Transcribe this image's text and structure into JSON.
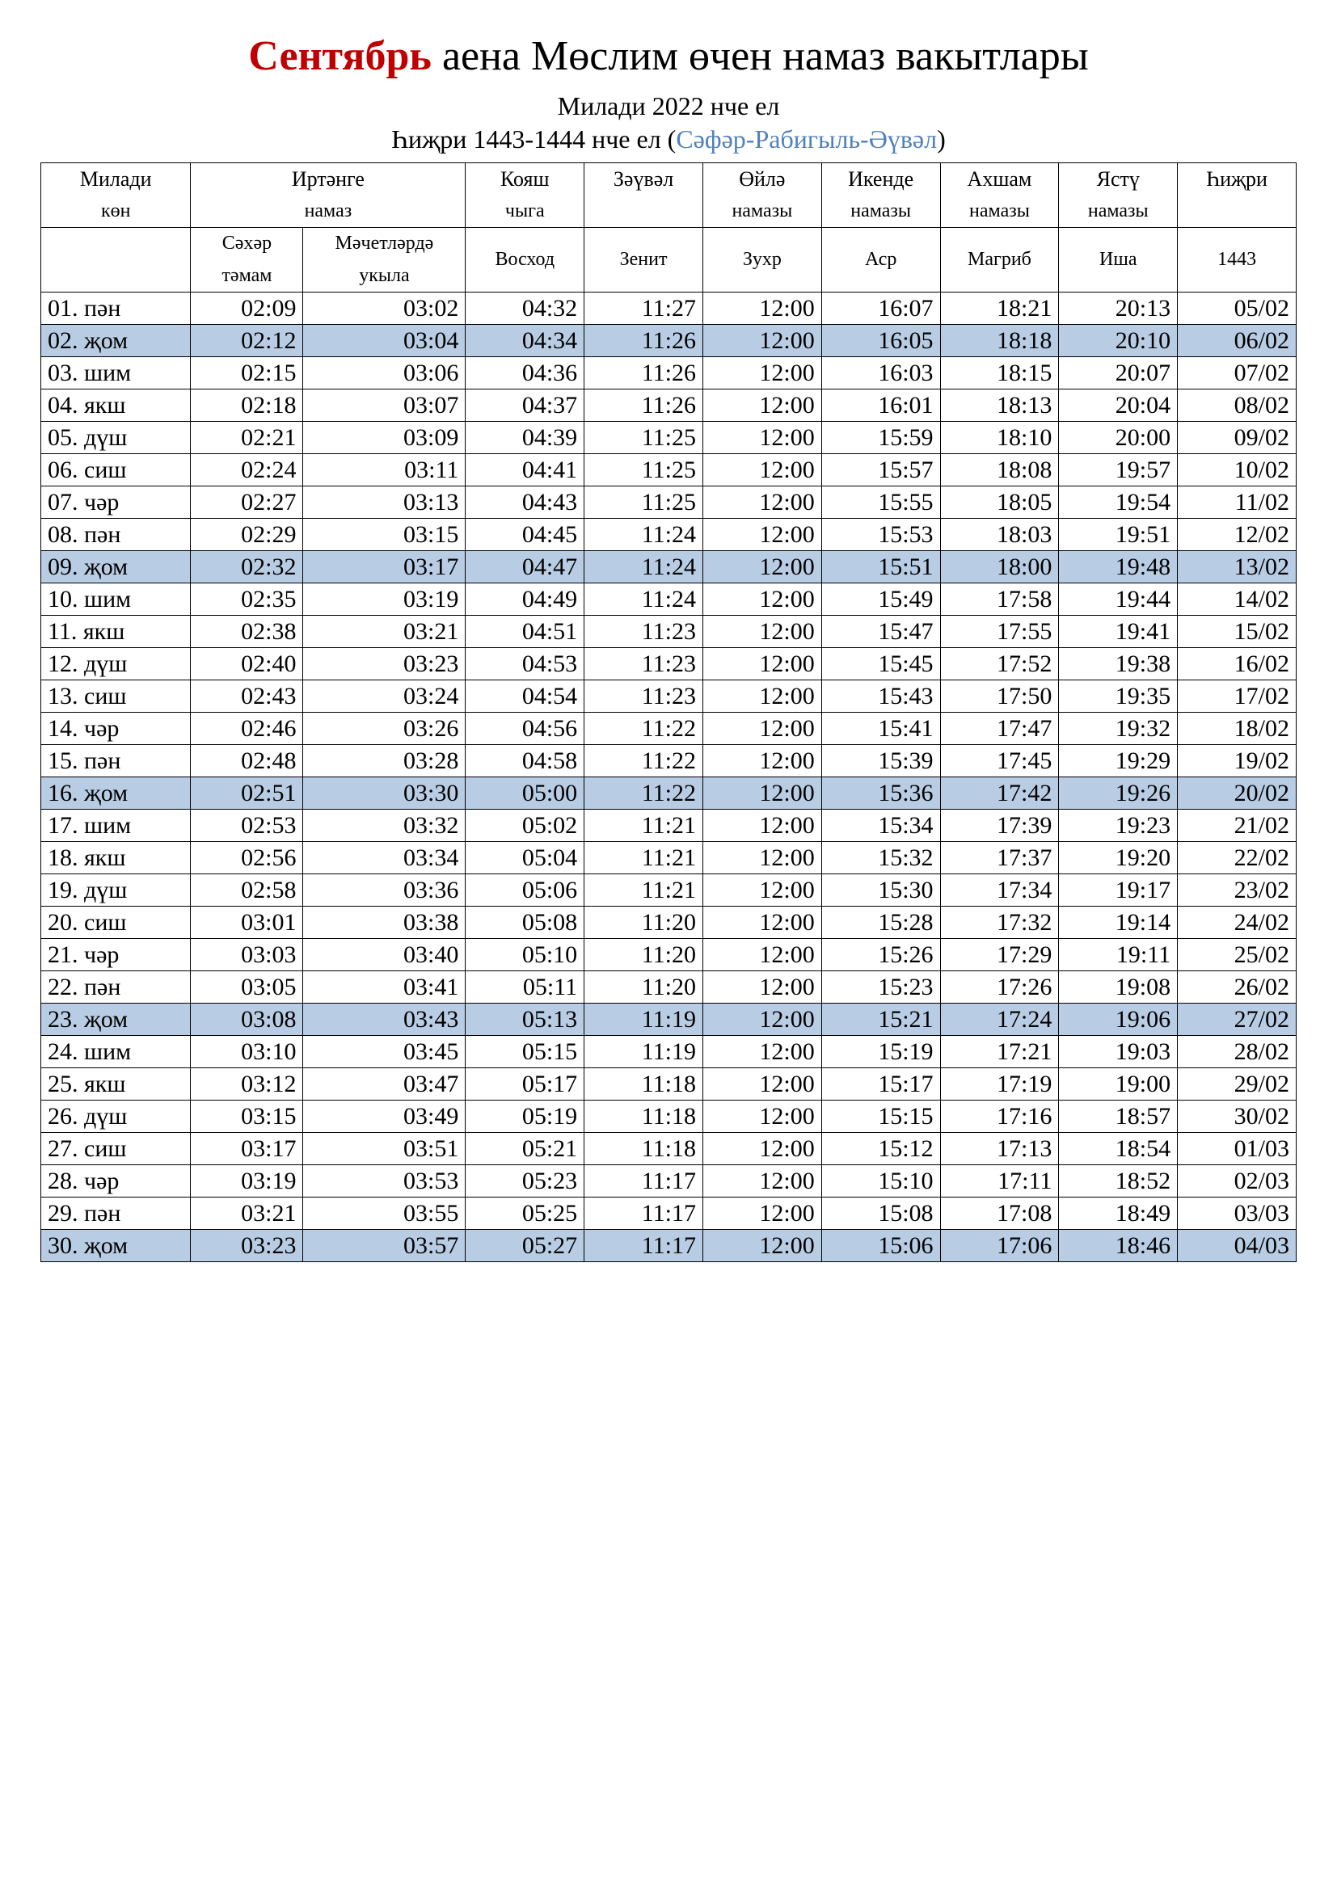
{
  "title": {
    "month": "Сентябрь",
    "rest": " аена Мөслим өчен намаз вакытлары"
  },
  "subtitle1": "Милади 2022 нче ел",
  "subtitle2_prefix": "Һиҗри 1443-1444 нче ел (",
  "subtitle2_months": "Сәфәр-Рабигыль-Әүвәл",
  "subtitle2_suffix": ")",
  "colors": {
    "month_color": "#c00000",
    "hijri_link_color": "#4f81bd",
    "friday_bg": "#b8cce4",
    "border": "#000000",
    "text": "#000000",
    "background": "#ffffff"
  },
  "headers": {
    "row1": {
      "miladi": "Милади",
      "irtenge": "Иртәнге",
      "koyash": "Кояш",
      "zavval": "Зәүвәл",
      "oyle": "Өйлә",
      "ikende": "Икенде",
      "ahsham": "Ахшам",
      "yastu": "Ястү",
      "hijri": "Һиҗри"
    },
    "row2": {
      "kon": "көн",
      "namaz": "намаз",
      "chyga": "чыга",
      "empty": "",
      "namazy": "намазы"
    },
    "row3": {
      "sahar": "Сәхәр",
      "mosque": "Мәчетләрдә",
      "voshod": "Восход",
      "zenit": "Зенит",
      "zuhr": "Зухр",
      "asr": "Аср",
      "magrib": "Магриб",
      "isha": "Иша",
      "hijri_year": "1443"
    },
    "row4": {
      "tamam": "тәмам",
      "ukyla": "укыла"
    }
  },
  "rows": [
    {
      "day": "01. пән",
      "sahar": "02:09",
      "mosque": "03:02",
      "sunrise": "04:32",
      "zenith": "11:27",
      "zuhr": "12:00",
      "asr": "16:07",
      "maghrib": "18:21",
      "isha": "20:13",
      "hijri": "05/02",
      "friday": false
    },
    {
      "day": "02. җом",
      "sahar": "02:12",
      "mosque": "03:04",
      "sunrise": "04:34",
      "zenith": "11:26",
      "zuhr": "12:00",
      "asr": "16:05",
      "maghrib": "18:18",
      "isha": "20:10",
      "hijri": "06/02",
      "friday": true
    },
    {
      "day": "03. шим",
      "sahar": "02:15",
      "mosque": "03:06",
      "sunrise": "04:36",
      "zenith": "11:26",
      "zuhr": "12:00",
      "asr": "16:03",
      "maghrib": "18:15",
      "isha": "20:07",
      "hijri": "07/02",
      "friday": false
    },
    {
      "day": "04. якш",
      "sahar": "02:18",
      "mosque": "03:07",
      "sunrise": "04:37",
      "zenith": "11:26",
      "zuhr": "12:00",
      "asr": "16:01",
      "maghrib": "18:13",
      "isha": "20:04",
      "hijri": "08/02",
      "friday": false
    },
    {
      "day": "05. дүш",
      "sahar": "02:21",
      "mosque": "03:09",
      "sunrise": "04:39",
      "zenith": "11:25",
      "zuhr": "12:00",
      "asr": "15:59",
      "maghrib": "18:10",
      "isha": "20:00",
      "hijri": "09/02",
      "friday": false
    },
    {
      "day": "06. сиш",
      "sahar": "02:24",
      "mosque": "03:11",
      "sunrise": "04:41",
      "zenith": "11:25",
      "zuhr": "12:00",
      "asr": "15:57",
      "maghrib": "18:08",
      "isha": "19:57",
      "hijri": "10/02",
      "friday": false
    },
    {
      "day": "07. чәр",
      "sahar": "02:27",
      "mosque": "03:13",
      "sunrise": "04:43",
      "zenith": "11:25",
      "zuhr": "12:00",
      "asr": "15:55",
      "maghrib": "18:05",
      "isha": "19:54",
      "hijri": "11/02",
      "friday": false
    },
    {
      "day": "08. пән",
      "sahar": "02:29",
      "mosque": "03:15",
      "sunrise": "04:45",
      "zenith": "11:24",
      "zuhr": "12:00",
      "asr": "15:53",
      "maghrib": "18:03",
      "isha": "19:51",
      "hijri": "12/02",
      "friday": false
    },
    {
      "day": "09. җом",
      "sahar": "02:32",
      "mosque": "03:17",
      "sunrise": "04:47",
      "zenith": "11:24",
      "zuhr": "12:00",
      "asr": "15:51",
      "maghrib": "18:00",
      "isha": "19:48",
      "hijri": "13/02",
      "friday": true
    },
    {
      "day": "10. шим",
      "sahar": "02:35",
      "mosque": "03:19",
      "sunrise": "04:49",
      "zenith": "11:24",
      "zuhr": "12:00",
      "asr": "15:49",
      "maghrib": "17:58",
      "isha": "19:44",
      "hijri": "14/02",
      "friday": false
    },
    {
      "day": "11. якш",
      "sahar": "02:38",
      "mosque": "03:21",
      "sunrise": "04:51",
      "zenith": "11:23",
      "zuhr": "12:00",
      "asr": "15:47",
      "maghrib": "17:55",
      "isha": "19:41",
      "hijri": "15/02",
      "friday": false
    },
    {
      "day": "12. дүш",
      "sahar": "02:40",
      "mosque": "03:23",
      "sunrise": "04:53",
      "zenith": "11:23",
      "zuhr": "12:00",
      "asr": "15:45",
      "maghrib": "17:52",
      "isha": "19:38",
      "hijri": "16/02",
      "friday": false
    },
    {
      "day": "13. сиш",
      "sahar": "02:43",
      "mosque": "03:24",
      "sunrise": "04:54",
      "zenith": "11:23",
      "zuhr": "12:00",
      "asr": "15:43",
      "maghrib": "17:50",
      "isha": "19:35",
      "hijri": "17/02",
      "friday": false
    },
    {
      "day": "14. чәр",
      "sahar": "02:46",
      "mosque": "03:26",
      "sunrise": "04:56",
      "zenith": "11:22",
      "zuhr": "12:00",
      "asr": "15:41",
      "maghrib": "17:47",
      "isha": "19:32",
      "hijri": "18/02",
      "friday": false
    },
    {
      "day": "15. пән",
      "sahar": "02:48",
      "mosque": "03:28",
      "sunrise": "04:58",
      "zenith": "11:22",
      "zuhr": "12:00",
      "asr": "15:39",
      "maghrib": "17:45",
      "isha": "19:29",
      "hijri": "19/02",
      "friday": false
    },
    {
      "day": "16. җом",
      "sahar": "02:51",
      "mosque": "03:30",
      "sunrise": "05:00",
      "zenith": "11:22",
      "zuhr": "12:00",
      "asr": "15:36",
      "maghrib": "17:42",
      "isha": "19:26",
      "hijri": "20/02",
      "friday": true
    },
    {
      "day": "17. шим",
      "sahar": "02:53",
      "mosque": "03:32",
      "sunrise": "05:02",
      "zenith": "11:21",
      "zuhr": "12:00",
      "asr": "15:34",
      "maghrib": "17:39",
      "isha": "19:23",
      "hijri": "21/02",
      "friday": false
    },
    {
      "day": "18. якш",
      "sahar": "02:56",
      "mosque": "03:34",
      "sunrise": "05:04",
      "zenith": "11:21",
      "zuhr": "12:00",
      "asr": "15:32",
      "maghrib": "17:37",
      "isha": "19:20",
      "hijri": "22/02",
      "friday": false
    },
    {
      "day": "19. дүш",
      "sahar": "02:58",
      "mosque": "03:36",
      "sunrise": "05:06",
      "zenith": "11:21",
      "zuhr": "12:00",
      "asr": "15:30",
      "maghrib": "17:34",
      "isha": "19:17",
      "hijri": "23/02",
      "friday": false
    },
    {
      "day": "20. сиш",
      "sahar": "03:01",
      "mosque": "03:38",
      "sunrise": "05:08",
      "zenith": "11:20",
      "zuhr": "12:00",
      "asr": "15:28",
      "maghrib": "17:32",
      "isha": "19:14",
      "hijri": "24/02",
      "friday": false
    },
    {
      "day": "21. чәр",
      "sahar": "03:03",
      "mosque": "03:40",
      "sunrise": "05:10",
      "zenith": "11:20",
      "zuhr": "12:00",
      "asr": "15:26",
      "maghrib": "17:29",
      "isha": "19:11",
      "hijri": "25/02",
      "friday": false
    },
    {
      "day": "22. пән",
      "sahar": "03:05",
      "mosque": "03:41",
      "sunrise": "05:11",
      "zenith": "11:20",
      "zuhr": "12:00",
      "asr": "15:23",
      "maghrib": "17:26",
      "isha": "19:08",
      "hijri": "26/02",
      "friday": false
    },
    {
      "day": "23. җом",
      "sahar": "03:08",
      "mosque": "03:43",
      "sunrise": "05:13",
      "zenith": "11:19",
      "zuhr": "12:00",
      "asr": "15:21",
      "maghrib": "17:24",
      "isha": "19:06",
      "hijri": "27/02",
      "friday": true
    },
    {
      "day": "24. шим",
      "sahar": "03:10",
      "mosque": "03:45",
      "sunrise": "05:15",
      "zenith": "11:19",
      "zuhr": "12:00",
      "asr": "15:19",
      "maghrib": "17:21",
      "isha": "19:03",
      "hijri": "28/02",
      "friday": false
    },
    {
      "day": "25. якш",
      "sahar": "03:12",
      "mosque": "03:47",
      "sunrise": "05:17",
      "zenith": "11:18",
      "zuhr": "12:00",
      "asr": "15:17",
      "maghrib": "17:19",
      "isha": "19:00",
      "hijri": "29/02",
      "friday": false
    },
    {
      "day": "26. дүш",
      "sahar": "03:15",
      "mosque": "03:49",
      "sunrise": "05:19",
      "zenith": "11:18",
      "zuhr": "12:00",
      "asr": "15:15",
      "maghrib": "17:16",
      "isha": "18:57",
      "hijri": "30/02",
      "friday": false
    },
    {
      "day": "27. сиш",
      "sahar": "03:17",
      "mosque": "03:51",
      "sunrise": "05:21",
      "zenith": "11:18",
      "zuhr": "12:00",
      "asr": "15:12",
      "maghrib": "17:13",
      "isha": "18:54",
      "hijri": "01/03",
      "friday": false
    },
    {
      "day": "28. чәр",
      "sahar": "03:19",
      "mosque": "03:53",
      "sunrise": "05:23",
      "zenith": "11:17",
      "zuhr": "12:00",
      "asr": "15:10",
      "maghrib": "17:11",
      "isha": "18:52",
      "hijri": "02/03",
      "friday": false
    },
    {
      "day": "29. пән",
      "sahar": "03:21",
      "mosque": "03:55",
      "sunrise": "05:25",
      "zenith": "11:17",
      "zuhr": "12:00",
      "asr": "15:08",
      "maghrib": "17:08",
      "isha": "18:49",
      "hijri": "03/03",
      "friday": false
    },
    {
      "day": "30. җом",
      "sahar": "03:23",
      "mosque": "03:57",
      "sunrise": "05:27",
      "zenith": "11:17",
      "zuhr": "12:00",
      "asr": "15:06",
      "maghrib": "17:06",
      "isha": "18:46",
      "hijri": "04/03",
      "friday": true
    }
  ]
}
